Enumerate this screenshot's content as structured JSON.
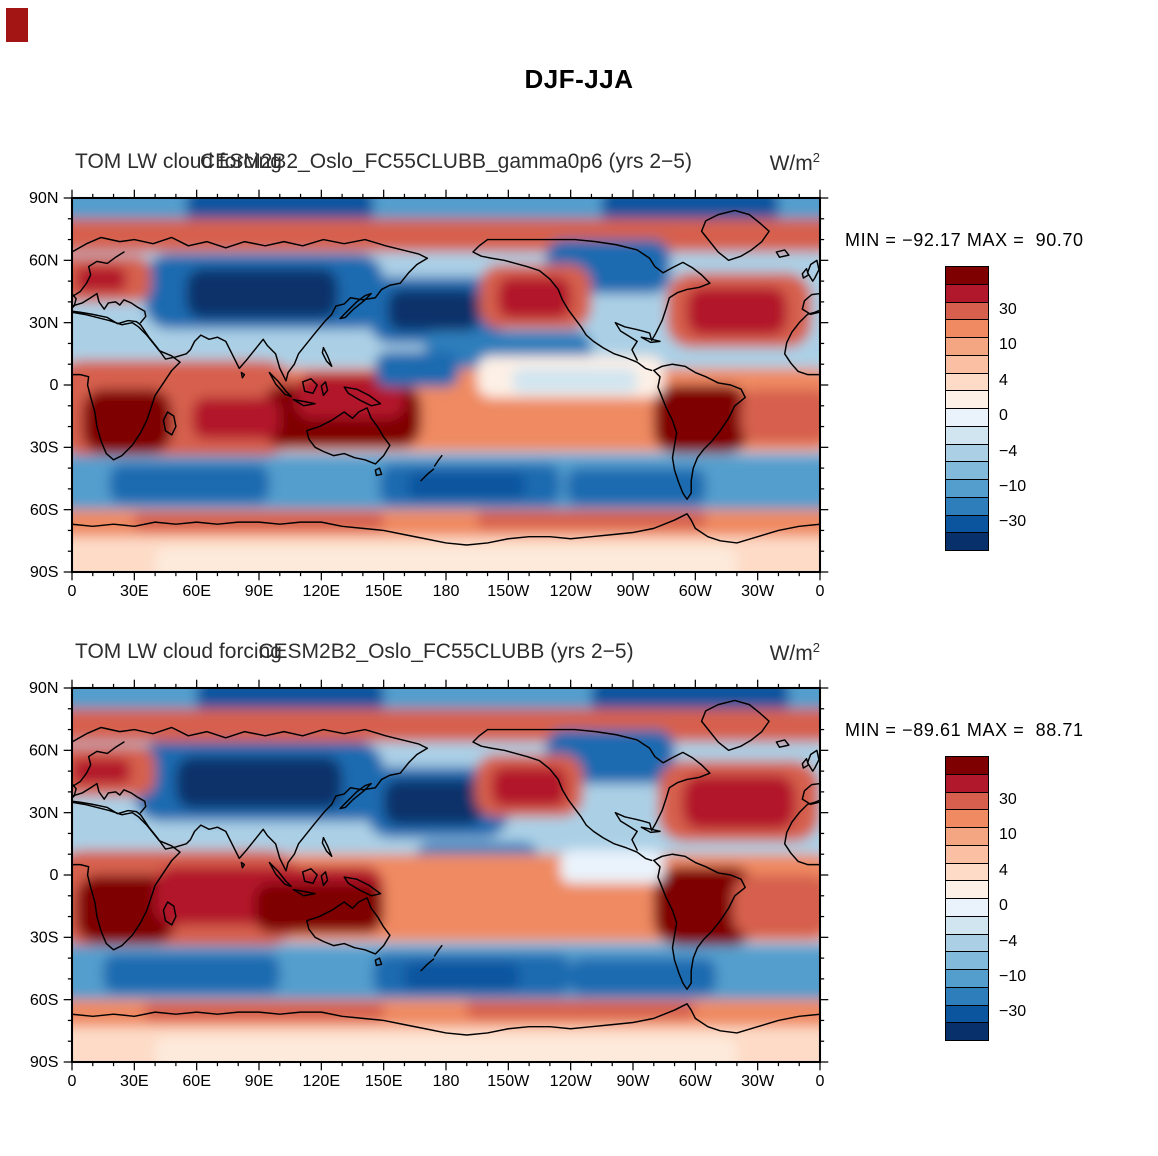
{
  "page": {
    "title": "DJF-JJA",
    "artifact_color": "#a31515"
  },
  "panels": [
    {
      "left_title": "TOM LW cloud forcing",
      "center_title": "CESM2B2_Oslo_FC55CLUBB_gamma0p6 (yrs 2−5)",
      "units_base": "W/m",
      "units_exp": "2",
      "stats": "MIN = −92.17 MAX =  90.70"
    },
    {
      "left_title": "TOM LW cloud forcing",
      "center_title": "CESM2B2_Oslo_FC55CLUBB (yrs 2−5)",
      "units_base": "W/m",
      "units_exp": "2",
      "stats": "MIN = −89.61 MAX =  88.71"
    }
  ],
  "axes": {
    "x_ticks": [
      "0",
      "30E",
      "60E",
      "90E",
      "120E",
      "150E",
      "180",
      "150W",
      "120W",
      "90W",
      "60W",
      "30W",
      "0"
    ],
    "y_ticks": [
      "90N",
      "60N",
      "30N",
      "0",
      "30S",
      "60S",
      "90S"
    ]
  },
  "colorbar": {
    "colors": [
      "#7f0000",
      "#b2182b",
      "#d6604d",
      "#ef8a62",
      "#f4a582",
      "#fbc0a4",
      "#fddbc7",
      "#fdf0e6",
      "#eaf3fb",
      "#d1e5f0",
      "#abd0e6",
      "#82badb",
      "#539ecd",
      "#2e7ebc",
      "#0b559f",
      "#08306b"
    ],
    "labels": [
      "30",
      "10",
      "4",
      "0",
      "−4",
      "−10",
      "−30"
    ]
  },
  "chart_data": [
    {
      "type": "heatmap",
      "panel": "top",
      "title_left": "TOM LW cloud forcing",
      "title_center": "CESM2B2_Oslo_FC55CLUBB_gamma0p6 (yrs 2−5)",
      "season_difference": "DJF-JJA",
      "units": "W/m^2",
      "min": -92.17,
      "max": 90.7,
      "lon_range_deg": [
        0,
        360
      ],
      "lat_range_deg": [
        -90,
        90
      ],
      "colorbar_labels": [
        "30",
        "10",
        "4",
        "0",
        "−4",
        "−10",
        "−30"
      ],
      "approx_pattern_note": "Approximate filled-contour field sampled from the image; each entry is [lon_start, lon_end, lat_top, lat_bottom, color].",
      "approx_pattern": [
        [
          -10,
          370,
          95,
          -95,
          "#abd0e6"
        ],
        [
          -10,
          370,
          95,
          76,
          "#539ecd"
        ],
        [
          55,
          145,
          95,
          78,
          "#0b559f"
        ],
        [
          255,
          340,
          95,
          78,
          "#0b559f"
        ],
        [
          -10,
          370,
          80,
          64,
          "#d6604d"
        ],
        [
          35,
          150,
          63,
          27,
          "#1b6bb0"
        ],
        [
          55,
          128,
          56,
          32,
          "#08306b"
        ],
        [
          143,
          208,
          52,
          20,
          "#1b6bb0"
        ],
        [
          152,
          196,
          46,
          26,
          "#08306b"
        ],
        [
          170,
          250,
          26,
          6,
          "#2e7ebc"
        ],
        [
          228,
          288,
          70,
          44,
          "#1b6bb0"
        ],
        [
          196,
          250,
          58,
          27,
          "#d6604d"
        ],
        [
          205,
          240,
          52,
          32,
          "#b2182b"
        ],
        [
          286,
          356,
          54,
          18,
          "#d6604d"
        ],
        [
          296,
          344,
          47,
          24,
          "#b2182b"
        ],
        [
          -10,
          38,
          62,
          40,
          "#d6604d"
        ],
        [
          2,
          26,
          57,
          45,
          "#b2182b"
        ],
        [
          -10,
          370,
          8,
          -32,
          "#ef8a62"
        ],
        [
          -10,
          108,
          12,
          -34,
          "#d6604d"
        ],
        [
          5,
          48,
          -2,
          -33,
          "#7f0000"
        ],
        [
          92,
          168,
          0,
          -30,
          "#7f0000"
        ],
        [
          108,
          160,
          6,
          -16,
          "#b2182b"
        ],
        [
          58,
          100,
          -6,
          -26,
          "#b2182b"
        ],
        [
          280,
          326,
          0,
          -33,
          "#7f0000"
        ],
        [
          322,
          365,
          -2,
          -28,
          "#d6604d"
        ],
        [
          195,
          285,
          14,
          -6,
          "#fdf0e6"
        ],
        [
          212,
          272,
          8,
          -4,
          "#d1e5f0"
        ],
        [
          146,
          186,
          16,
          -1,
          "#1b6bb0"
        ],
        [
          -10,
          370,
          -34,
          -60,
          "#539ecd"
        ],
        [
          18,
          95,
          -38,
          -57,
          "#1b6bb0"
        ],
        [
          148,
          235,
          -38,
          -58,
          "#1b6bb0"
        ],
        [
          162,
          218,
          -42,
          -55,
          "#0b559f"
        ],
        [
          238,
          305,
          -40,
          -58,
          "#1b6bb0"
        ],
        [
          -10,
          370,
          -60,
          -74,
          "#ef8a62"
        ],
        [
          30,
          150,
          -61,
          -70,
          "#d6604d"
        ],
        [
          195,
          305,
          -60,
          -69,
          "#d6604d"
        ],
        [
          -10,
          370,
          -73,
          -95,
          "#fddbc7"
        ],
        [
          40,
          320,
          -78,
          -95,
          "#fdeadb"
        ]
      ]
    },
    {
      "type": "heatmap",
      "panel": "bottom",
      "title_left": "TOM LW cloud forcing",
      "title_center": "CESM2B2_Oslo_FC55CLUBB (yrs 2−5)",
      "season_difference": "DJF-JJA",
      "units": "W/m^2",
      "min": -89.61,
      "max": 88.71,
      "lon_range_deg": [
        0,
        360
      ],
      "lat_range_deg": [
        -90,
        90
      ],
      "colorbar_labels": [
        "30",
        "10",
        "4",
        "0",
        "−4",
        "−10",
        "−30"
      ],
      "approx_pattern_note": "Approximate filled-contour field sampled from the image; each entry is [lon_start, lon_end, lat_top, lat_bottom, color].",
      "approx_pattern": [
        [
          -10,
          370,
          95,
          -95,
          "#abd0e6"
        ],
        [
          -10,
          370,
          95,
          76,
          "#539ecd"
        ],
        [
          60,
          150,
          95,
          78,
          "#0b559f"
        ],
        [
          250,
          345,
          95,
          78,
          "#0b559f"
        ],
        [
          -10,
          370,
          80,
          64,
          "#d6604d"
        ],
        [
          30,
          150,
          64,
          26,
          "#1b6bb0"
        ],
        [
          50,
          130,
          57,
          32,
          "#08306b"
        ],
        [
          142,
          210,
          52,
          18,
          "#1b6bb0"
        ],
        [
          150,
          198,
          46,
          24,
          "#08306b"
        ],
        [
          165,
          225,
          16,
          -8,
          "#2e7ebc"
        ],
        [
          228,
          290,
          70,
          44,
          "#1b6bb0"
        ],
        [
          194,
          246,
          58,
          28,
          "#d6604d"
        ],
        [
          202,
          238,
          52,
          33,
          "#b2182b"
        ],
        [
          282,
          360,
          55,
          16,
          "#d6604d"
        ],
        [
          294,
          348,
          48,
          22,
          "#b2182b"
        ],
        [
          -10,
          40,
          62,
          38,
          "#d6604d"
        ],
        [
          0,
          28,
          56,
          44,
          "#b2182b"
        ],
        [
          -10,
          370,
          10,
          -32,
          "#ef8a62"
        ],
        [
          -10,
          110,
          12,
          -34,
          "#d6604d"
        ],
        [
          2,
          50,
          0,
          -33,
          "#7f0000"
        ],
        [
          40,
          150,
          4,
          -24,
          "#b2182b"
        ],
        [
          88,
          150,
          -4,
          -28,
          "#7f0000"
        ],
        [
          280,
          330,
          4,
          -34,
          "#7f0000"
        ],
        [
          318,
          365,
          0,
          -30,
          "#d6604d"
        ],
        [
          235,
          285,
          12,
          -4,
          "#eaf3fb"
        ],
        [
          -10,
          370,
          -34,
          -60,
          "#539ecd"
        ],
        [
          15,
          100,
          -38,
          -57,
          "#1b6bb0"
        ],
        [
          145,
          240,
          -38,
          -58,
          "#1b6bb0"
        ],
        [
          160,
          215,
          -42,
          -56,
          "#0b559f"
        ],
        [
          240,
          310,
          -40,
          -58,
          "#1b6bb0"
        ],
        [
          -10,
          370,
          -60,
          -74,
          "#ef8a62"
        ],
        [
          35,
          150,
          -61,
          -70,
          "#d6604d"
        ],
        [
          190,
          300,
          -60,
          -69,
          "#d6604d"
        ],
        [
          -10,
          370,
          -73,
          -95,
          "#fddbc7"
        ],
        [
          40,
          320,
          -78,
          -95,
          "#fdeadb"
        ]
      ]
    }
  ]
}
